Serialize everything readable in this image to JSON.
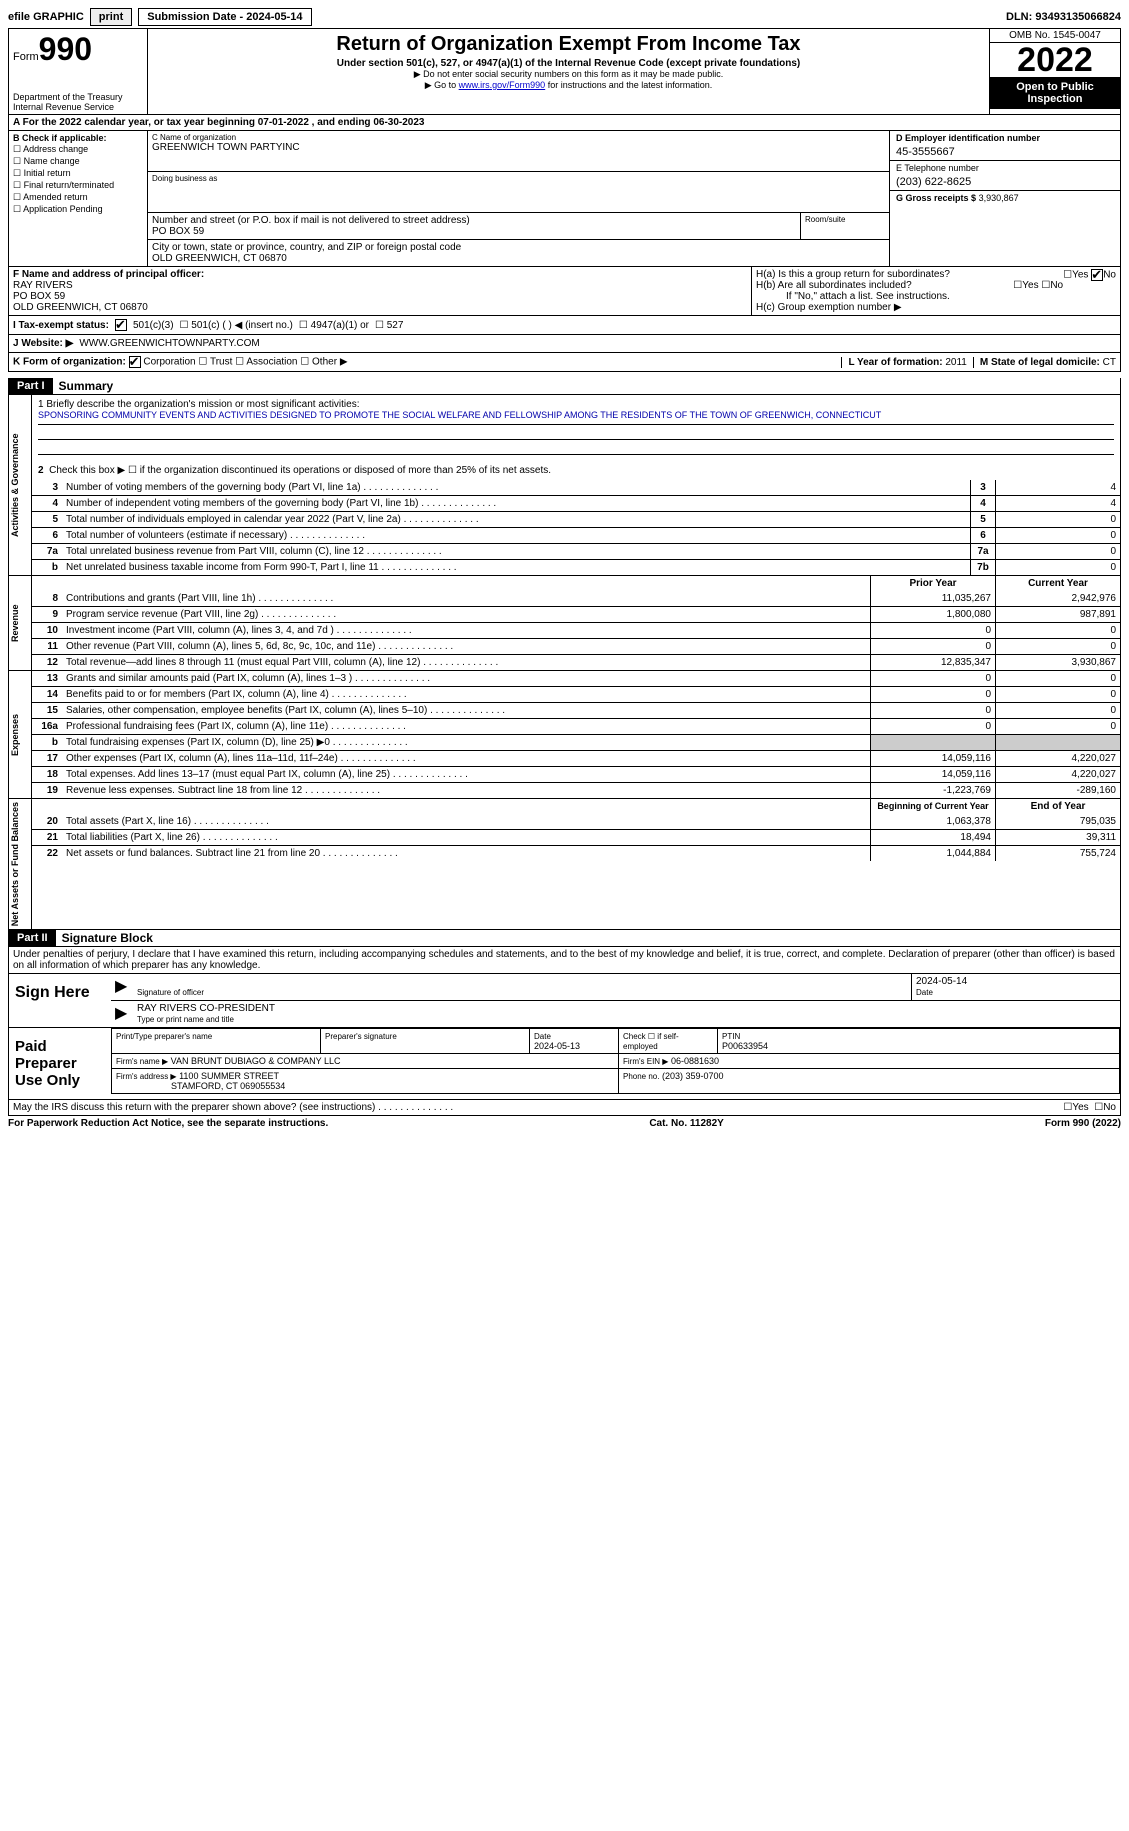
{
  "top": {
    "efile_label": "efile GRAPHIC",
    "print_btn": "print",
    "submission_label": "Submission Date - 2024-05-14",
    "dln": "DLN: 93493135066824"
  },
  "header": {
    "form_label": "Form",
    "form_number": "990",
    "dept": "Department of the Treasury",
    "irs": "Internal Revenue Service",
    "title": "Return of Organization Exempt From Income Tax",
    "subtitle": "Under section 501(c), 527, or 4947(a)(1) of the Internal Revenue Code (except private foundations)",
    "note1": "▶ Do not enter social security numbers on this form as it may be made public.",
    "note2_pre": "▶ Go to ",
    "note2_link": "www.irs.gov/Form990",
    "note2_post": " for instructions and the latest information.",
    "omb": "OMB No. 1545-0047",
    "tax_year": "2022",
    "open_public": "Open to Public Inspection"
  },
  "row_a": "A For the 2022 calendar year, or tax year beginning 07-01-2022    , and ending 06-30-2023",
  "box_b": {
    "header": "B Check if applicable:",
    "opts": [
      "Address change",
      "Name change",
      "Initial return",
      "Final return/terminated",
      "Amended return",
      "Application Pending"
    ]
  },
  "box_c": {
    "name_lbl": "C Name of organization",
    "name": "GREENWICH TOWN PARTYINC",
    "dba_lbl": "Doing business as",
    "addr_lbl": "Number and street (or P.O. box if mail is not delivered to street address)",
    "room_lbl": "Room/suite",
    "addr": "PO BOX 59",
    "city_lbl": "City or town, state or province, country, and ZIP or foreign postal code",
    "city": "OLD GREENWICH, CT  06870"
  },
  "box_d": {
    "lbl": "D Employer identification number",
    "val": "45-3555667"
  },
  "box_e": {
    "lbl": "E Telephone number",
    "val": "(203) 622-8625"
  },
  "box_g": {
    "lbl": "G Gross receipts $",
    "val": "3,930,867"
  },
  "box_f": {
    "lbl": "F Name and address of principal officer:",
    "l1": "RAY RIVERS",
    "l2": "PO BOX 59",
    "l3": "OLD GREENWICH, CT  06870"
  },
  "box_h": {
    "a": "H(a)  Is this a group return for subordinates?",
    "b": "H(b)  Are all subordinates included?",
    "b_note": "If \"No,\" attach a list. See instructions.",
    "c": "H(c)  Group exemption number ▶",
    "yes": "Yes",
    "no": "No"
  },
  "row_i": {
    "lbl": "I    Tax-exempt status:",
    "o1": "501(c)(3)",
    "o2": "501(c) (  ) ◀ (insert no.)",
    "o3": "4947(a)(1) or",
    "o4": "527"
  },
  "row_j": {
    "lbl": "J   Website: ▶",
    "val": " WWW.GREENWICHTOWNPARTY.COM"
  },
  "row_k": {
    "lbl": "K Form of organization:",
    "o1": "Corporation",
    "o2": "Trust",
    "o3": "Association",
    "o4": "Other ▶",
    "l_lbl": "L Year of formation:",
    "l_val": "2011",
    "m_lbl": "M State of legal domicile:",
    "m_val": "CT"
  },
  "part1": {
    "hdr": "Part I",
    "title": "Summary",
    "q1_lbl": "1   Briefly describe the organization's mission or most significant activities:",
    "q1_val": "SPONSORING COMMUNITY EVENTS AND ACTIVITIES DESIGNED TO PROMOTE THE SOCIAL WELFARE AND FELLOWSHIP AMONG THE RESIDENTS OF THE TOWN OF GREENWICH, CONNECTICUT",
    "q2": "Check this box ▶ ☐  if the organization discontinued its operations or disposed of more than 25% of its net assets.",
    "tab_gov": "Activities & Governance",
    "tab_rev": "Revenue",
    "tab_exp": "Expenses",
    "tab_net": "Net Assets or Fund Balances",
    "rows_gov": [
      {
        "n": "3",
        "d": "Number of voting members of the governing body (Part VI, line 1a)",
        "box": "3",
        "v": "4"
      },
      {
        "n": "4",
        "d": "Number of independent voting members of the governing body (Part VI, line 1b)",
        "box": "4",
        "v": "4"
      },
      {
        "n": "5",
        "d": "Total number of individuals employed in calendar year 2022 (Part V, line 2a)",
        "box": "5",
        "v": "0"
      },
      {
        "n": "6",
        "d": "Total number of volunteers (estimate if necessary)",
        "box": "6",
        "v": "0"
      },
      {
        "n": "7a",
        "d": "Total unrelated business revenue from Part VIII, column (C), line 12",
        "box": "7a",
        "v": "0"
      },
      {
        "n": "b",
        "d": "Net unrelated business taxable income from Form 990-T, Part I, line 11",
        "box": "7b",
        "v": "0"
      }
    ],
    "col_prior": "Prior Year",
    "col_current": "Current Year",
    "rows_rev": [
      {
        "n": "8",
        "d": "Contributions and grants (Part VIII, line 1h)",
        "p": "11,035,267",
        "c": "2,942,976"
      },
      {
        "n": "9",
        "d": "Program service revenue (Part VIII, line 2g)",
        "p": "1,800,080",
        "c": "987,891"
      },
      {
        "n": "10",
        "d": "Investment income (Part VIII, column (A), lines 3, 4, and 7d )",
        "p": "0",
        "c": "0"
      },
      {
        "n": "11",
        "d": "Other revenue (Part VIII, column (A), lines 5, 6d, 8c, 9c, 10c, and 11e)",
        "p": "0",
        "c": "0"
      },
      {
        "n": "12",
        "d": "Total revenue—add lines 8 through 11 (must equal Part VIII, column (A), line 12)",
        "p": "12,835,347",
        "c": "3,930,867"
      }
    ],
    "rows_exp": [
      {
        "n": "13",
        "d": "Grants and similar amounts paid (Part IX, column (A), lines 1–3 )",
        "p": "0",
        "c": "0"
      },
      {
        "n": "14",
        "d": "Benefits paid to or for members (Part IX, column (A), line 4)",
        "p": "0",
        "c": "0"
      },
      {
        "n": "15",
        "d": "Salaries, other compensation, employee benefits (Part IX, column (A), lines 5–10)",
        "p": "0",
        "c": "0"
      },
      {
        "n": "16a",
        "d": "Professional fundraising fees (Part IX, column (A), line 11e)",
        "p": "0",
        "c": "0"
      },
      {
        "n": "b",
        "d": "Total fundraising expenses (Part IX, column (D), line 25) ▶0",
        "p": "",
        "c": "",
        "shade": true
      },
      {
        "n": "17",
        "d": "Other expenses (Part IX, column (A), lines 11a–11d, 11f–24e)",
        "p": "14,059,116",
        "c": "4,220,027"
      },
      {
        "n": "18",
        "d": "Total expenses. Add lines 13–17 (must equal Part IX, column (A), line 25)",
        "p": "14,059,116",
        "c": "4,220,027"
      },
      {
        "n": "19",
        "d": "Revenue less expenses. Subtract line 18 from line 12",
        "p": "-1,223,769",
        "c": "-289,160"
      }
    ],
    "col_begin": "Beginning of Current Year",
    "col_end": "End of Year",
    "rows_net": [
      {
        "n": "20",
        "d": "Total assets (Part X, line 16)",
        "p": "1,063,378",
        "c": "795,035"
      },
      {
        "n": "21",
        "d": "Total liabilities (Part X, line 26)",
        "p": "18,494",
        "c": "39,311"
      },
      {
        "n": "22",
        "d": "Net assets or fund balances. Subtract line 21 from line 20",
        "p": "1,044,884",
        "c": "755,724"
      }
    ]
  },
  "part2": {
    "hdr": "Part II",
    "title": "Signature Block",
    "decl": "Under penalties of perjury, I declare that I have examined this return, including accompanying schedules and statements, and to the best of my knowledge and belief, it is true, correct, and complete. Declaration of preparer (other than officer) is based on all information of which preparer has any knowledge.",
    "sign_here": "Sign Here",
    "sig_officer": "Signature of officer",
    "sig_date": "2024-05-14",
    "date_lbl": "Date",
    "name_title": "RAY RIVERS  CO-PRESIDENT",
    "name_title_lbl": "Type or print name and title",
    "paid_prep": "Paid Preparer Use Only",
    "prep_name_lbl": "Print/Type preparer's name",
    "prep_sig_lbl": "Preparer's signature",
    "prep_date_lbl": "Date",
    "prep_date": "2024-05-13",
    "self_emp": "Check ☐ if self-employed",
    "ptin_lbl": "PTIN",
    "ptin": "P00633954",
    "firm_name_lbl": "Firm's name    ▶",
    "firm_name": "VAN BRUNT DUBIAGO & COMPANY LLC",
    "firm_ein_lbl": "Firm's EIN ▶",
    "firm_ein": "06-0881630",
    "firm_addr_lbl": "Firm's address ▶",
    "firm_addr1": "1100 SUMMER STREET",
    "firm_addr2": "STAMFORD, CT  069055534",
    "phone_lbl": "Phone no.",
    "phone": "(203) 359-0700",
    "discuss": "May the IRS discuss this return with the preparer shown above? (see instructions)",
    "yes": "Yes",
    "no": "No"
  },
  "footer": {
    "left": "For Paperwork Reduction Act Notice, see the separate instructions.",
    "mid": "Cat. No. 11282Y",
    "right": "Form 990 (2022)"
  }
}
